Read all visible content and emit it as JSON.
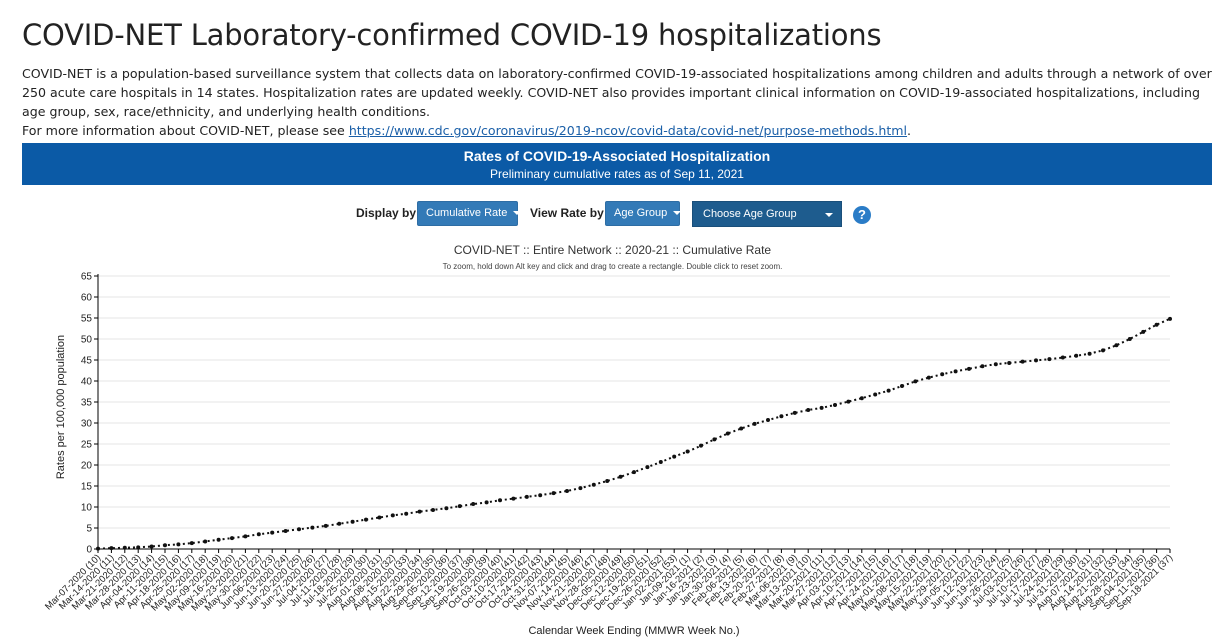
{
  "header": {
    "title": "COVID-NET Laboratory-confirmed COVID-19 hospitalizations",
    "description": "COVID-NET is a population-based surveillance system that collects data on laboratory-confirmed COVID-19-associated hospitalizations among children and adults through a network of over 250 acute care hospitals in 14 states. Hospitalization rates are updated weekly. COVID-NET also provides important clinical information on COVID-19-associated hospitalizations, including age group, sex, race/ethnicity, and underlying health conditions.",
    "more_info_prefix": "For more information about COVID-NET, please see ",
    "more_info_link": "https://www.cdc.gov/coronavirus/2019-ncov/covid-data/covid-net/purpose-methods.html",
    "more_info_suffix": "."
  },
  "banner": {
    "title": "Rates of COVID-19-Associated Hospitalization",
    "subtitle": "Preliminary cumulative rates as of Sep 11, 2021",
    "background": "#0b5aa6"
  },
  "controls": {
    "display_by_label": "Display by",
    "display_by_value": "Cumulative Rate",
    "view_rate_by_label": "View Rate by",
    "view_rate_by_value": "Age Group",
    "age_group_select": "Choose Age Group",
    "help_icon": "question-circle-icon",
    "help_glyph": "?"
  },
  "chart_data": {
    "type": "line",
    "title": "COVID-NET :: Entire Network :: 2020-21 :: Cumulative Rate",
    "note": "To zoom, hold down Alt key and click and drag to create a rectangle. Double click to reset zoom.",
    "xlabel": "Calendar Week Ending (MMWR Week No.)",
    "ylabel": "Rates per 100,000 population",
    "ylim": [
      0,
      65
    ],
    "yticks": [
      0,
      5,
      10,
      15,
      20,
      25,
      30,
      35,
      40,
      45,
      50,
      55,
      60,
      65
    ],
    "grid": true,
    "line_style": "dotted with point markers",
    "color": "#111111",
    "x": [
      "Mar-07-2020 (10)",
      "Mar-14-2020 (11)",
      "Mar-21-2020 (12)",
      "Mar-28-2020 (13)",
      "Apr-04-2020 (14)",
      "Apr-11-2020 (15)",
      "Apr-18-2020 (16)",
      "Apr-25-2020 (17)",
      "May-02-2020 (18)",
      "May-09-2020 (19)",
      "May-16-2020 (20)",
      "May-23-2020 (21)",
      "May-30-2020 (22)",
      "Jun-06-2020 (23)",
      "Jun-13-2020 (24)",
      "Jun-20-2020 (25)",
      "Jun-27-2020 (26)",
      "Jul-04-2020 (27)",
      "Jul-11-2020 (28)",
      "Jul-18-2020 (29)",
      "Jul-25-2020 (30)",
      "Aug-01-2020 (31)",
      "Aug-08-2020 (32)",
      "Aug-15-2020 (33)",
      "Aug-22-2020 (34)",
      "Aug-29-2020 (35)",
      "Sep-05-2020 (36)",
      "Sep-12-2020 (37)",
      "Sep-19-2020 (38)",
      "Sep-26-2020 (39)",
      "Oct-03-2020 (40)",
      "Oct-10-2020 (41)",
      "Oct-17-2020 (42)",
      "Oct-24-2020 (43)",
      "Oct-31-2020 (44)",
      "Nov-07-2020 (45)",
      "Nov-14-2020 (46)",
      "Nov-21-2020 (47)",
      "Nov-28-2020 (48)",
      "Dec-05-2020 (49)",
      "Dec-12-2020 (50)",
      "Dec-19-2020 (51)",
      "Dec-26-2020 (52)",
      "Jan-02-2021 (53)",
      "Jan-09-2021 (1)",
      "Jan-16-2021 (2)",
      "Jan-23-2021 (3)",
      "Jan-30-2021 (4)",
      "Feb-06-2021 (5)",
      "Feb-13-2021 (6)",
      "Feb-20-2021 (7)",
      "Feb-27-2021 (8)",
      "Mar-06-2021 (9)",
      "Mar-13-2021 (10)",
      "Mar-20-2021 (11)",
      "Mar-27-2021 (12)",
      "Apr-03-2021 (13)",
      "Apr-10-2021 (14)",
      "Apr-17-2021 (15)",
      "Apr-24-2021 (16)",
      "May-01-2021 (17)",
      "May-08-2021 (18)",
      "May-15-2021 (19)",
      "May-22-2021 (20)",
      "May-29-2021 (21)",
      "Jun-05-2021 (22)",
      "Jun-12-2021 (23)",
      "Jun-19-2021 (24)",
      "Jun-26-2021 (25)",
      "Jul-03-2021 (26)",
      "Jul-10-2021 (27)",
      "Jul-17-2021 (28)",
      "Jul-24-2021 (29)",
      "Jul-31-2021 (30)",
      "Aug-07-2021 (31)",
      "Aug-14-2021 (32)",
      "Aug-21-2021 (33)",
      "Aug-28-2021 (34)",
      "Sep-04-2021 (35)",
      "Sep-11-2021 (36)",
      "Sep-18-2021 (37)"
    ],
    "y": [
      0.1,
      0.2,
      0.3,
      0.4,
      0.6,
      0.9,
      1.1,
      1.4,
      1.8,
      2.2,
      2.6,
      3.0,
      3.5,
      3.9,
      4.3,
      4.7,
      5.1,
      5.5,
      6.0,
      6.5,
      7.0,
      7.5,
      8.0,
      8.4,
      8.9,
      9.3,
      9.7,
      10.2,
      10.7,
      11.1,
      11.6,
      12.0,
      12.4,
      12.8,
      13.3,
      13.8,
      14.5,
      15.3,
      16.2,
      17.2,
      18.3,
      19.5,
      20.7,
      22.0,
      23.2,
      24.6,
      26.1,
      27.5,
      28.7,
      29.8,
      30.7,
      31.6,
      32.4,
      33.1,
      33.6,
      34.3,
      35.1,
      35.9,
      36.8,
      37.7,
      38.8,
      39.9,
      40.8,
      41.6,
      42.3,
      42.9,
      43.5,
      44.0,
      44.3,
      44.6,
      44.9,
      45.2,
      45.6,
      46.0,
      46.5,
      47.3,
      48.5,
      50.0,
      51.7,
      53.4,
      54.8
    ]
  }
}
